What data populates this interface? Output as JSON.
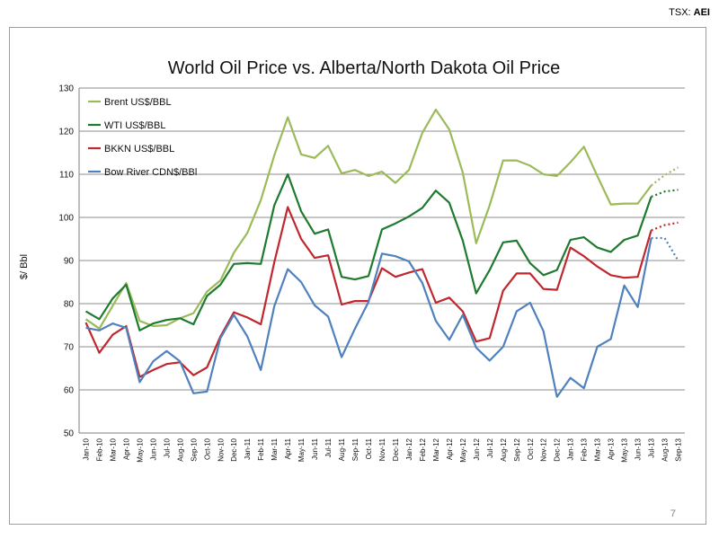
{
  "header": {
    "ticker_prefix": "TSX: ",
    "ticker_symbol": "AEI"
  },
  "footer": {
    "page_number": "7"
  },
  "chart_data": {
    "type": "line",
    "title": "World Oil Price vs. Alberta/North Dakota Oil Price",
    "xlabel": "",
    "ylabel": "$/ Bbl",
    "ylim": [
      50,
      130
    ],
    "yticks": [
      50,
      60,
      70,
      80,
      90,
      100,
      110,
      120,
      130
    ],
    "grid": true,
    "legend_position": "top-left",
    "categories": [
      "Jan-10",
      "Feb-10",
      "Mar-10",
      "Apr-10",
      "May-10",
      "Jun-10",
      "Jul-10",
      "Aug-10",
      "Sep-10",
      "Oct-10",
      "Nov-10",
      "Dec-10",
      "Jan-11",
      "Feb-11",
      "Mar-11",
      "Apr-11",
      "May-11",
      "Jun-11",
      "Jul-11",
      "Aug-11",
      "Sep-11",
      "Oct-11",
      "Nov-11",
      "Dec-11",
      "Jan-12",
      "Feb-12",
      "Mar-12",
      "Apr-12",
      "May-12",
      "Jun-12",
      "Jul-12",
      "Aug-12",
      "Sep-12",
      "Oct-12",
      "Nov-12",
      "Dec-12",
      "Jan-13",
      "Feb-13",
      "Mar-13",
      "Apr-13",
      "May-13",
      "Jun-13",
      "Jul-13",
      "Aug-13",
      "Sep-13"
    ],
    "forecast_start_index": 42,
    "series": [
      {
        "name": "Brent US$/BBL",
        "color": "#9bbb59",
        "values": [
          76.4,
          74.2,
          79.5,
          84.8,
          76.0,
          74.8,
          75.0,
          76.6,
          77.8,
          82.8,
          85.4,
          91.8,
          96.4,
          104.0,
          114.4,
          123.2,
          114.6,
          113.8,
          116.6,
          110.2,
          111.0,
          109.6,
          110.6,
          108.0,
          111.0,
          119.6,
          125.0,
          120.4,
          110.4,
          94.0,
          102.8,
          113.2,
          113.2,
          112.0,
          110.0,
          109.6,
          112.8,
          116.4,
          109.6,
          103.0,
          103.2,
          103.2,
          107.4,
          109.8,
          111.6
        ]
      },
      {
        "name": "WTI US$/BBL",
        "color": "#1e7a2e",
        "values": [
          78.2,
          76.4,
          81.2,
          84.4,
          73.8,
          75.4,
          76.2,
          76.6,
          75.2,
          81.8,
          84.4,
          89.2,
          89.4,
          89.2,
          102.8,
          110.0,
          101.4,
          96.2,
          97.2,
          86.2,
          85.6,
          86.4,
          97.2,
          98.6,
          100.2,
          102.2,
          106.2,
          103.4,
          94.6,
          82.4,
          87.8,
          94.2,
          94.6,
          89.4,
          86.6,
          87.8,
          94.8,
          95.4,
          93.0,
          92.0,
          94.8,
          95.8,
          104.8,
          106.0,
          106.4
        ]
      },
      {
        "name": "BKKN US$/BBL",
        "color": "#c0272d",
        "values": [
          75.6,
          68.6,
          72.8,
          74.8,
          63.0,
          64.6,
          66.0,
          66.4,
          63.4,
          65.2,
          72.4,
          78.0,
          76.8,
          75.2,
          89.6,
          102.4,
          95.0,
          90.6,
          91.2,
          79.8,
          80.6,
          80.6,
          88.2,
          86.2,
          87.2,
          88.0,
          80.2,
          81.4,
          78.2,
          71.2,
          72.0,
          83.0,
          87.0,
          87.0,
          83.4,
          83.2,
          93.0,
          91.0,
          88.6,
          86.6,
          86.0,
          86.2,
          97.0,
          98.2,
          98.8
        ]
      },
      {
        "name": "Bow River CDN$/BBl",
        "color": "#4f81bd",
        "values": [
          74.4,
          73.8,
          75.4,
          74.4,
          61.8,
          66.6,
          69.0,
          66.6,
          59.2,
          59.6,
          72.0,
          77.4,
          72.4,
          64.6,
          79.4,
          88.0,
          85.0,
          79.6,
          77.0,
          67.6,
          74.2,
          80.4,
          91.6,
          91.0,
          89.8,
          84.8,
          76.0,
          71.6,
          77.4,
          69.8,
          66.8,
          70.0,
          78.2,
          80.2,
          73.6,
          58.4,
          62.8,
          60.4,
          70.0,
          71.8,
          84.2,
          79.2,
          95.2,
          95.2,
          90.0
        ]
      }
    ]
  }
}
